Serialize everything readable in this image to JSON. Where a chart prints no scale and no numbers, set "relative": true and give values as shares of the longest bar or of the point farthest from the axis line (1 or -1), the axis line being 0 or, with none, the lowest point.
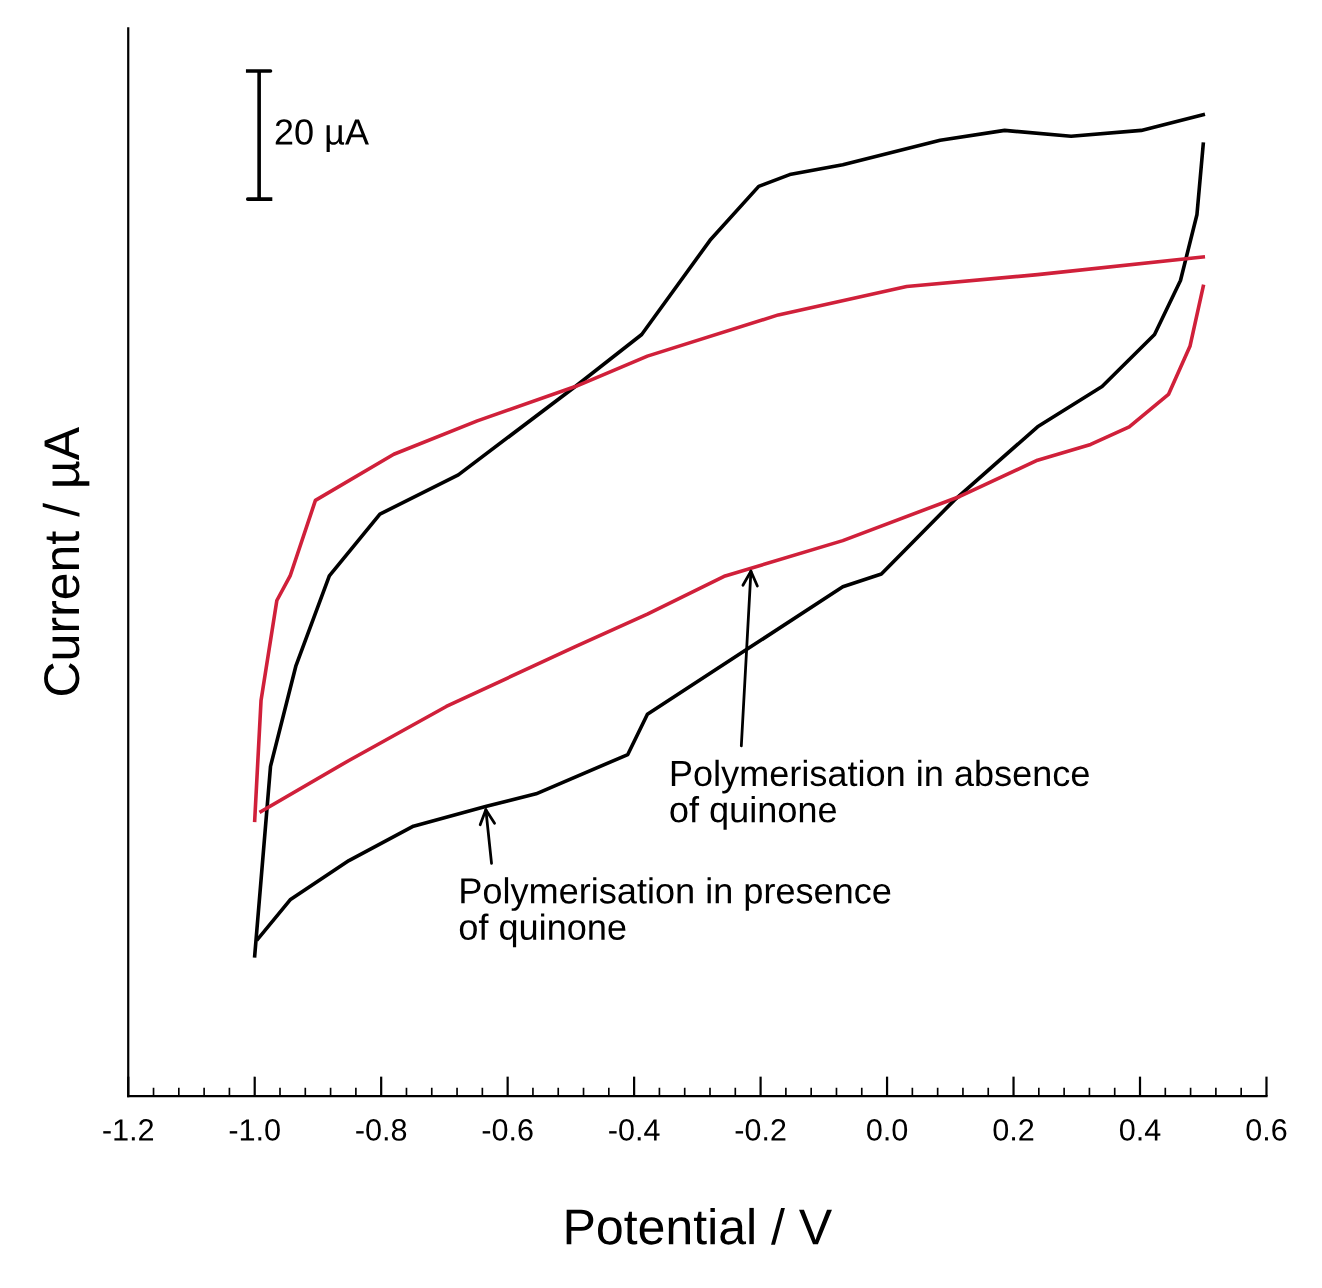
{
  "chart_data": {
    "type": "line",
    "relative": true,
    "xlabel": "Potential / V",
    "ylabel": "Current / µA",
    "xlim": [
      -1.2,
      0.6
    ],
    "xticks": [
      -1.2,
      {
        "value": -1.0,
        "label": "-1.0"
      },
      -0.8,
      -0.6,
      -0.4,
      -0.2,
      {
        "value": 0.0,
        "label": "0.0"
      },
      0.2,
      0.4,
      0.6
    ],
    "grid": false,
    "marker": "none",
    "line_style": "solid",
    "series": [
      {
        "color": "#000000",
        "x": [
          -1.0,
          -0.99,
          -0.975,
          -0.935,
          -0.882,
          -0.802,
          -0.678,
          -0.493,
          -0.388,
          -0.28,
          -0.203,
          -0.154,
          -0.07,
          0.084,
          0.186,
          0.291,
          0.402,
          0.5
        ],
        "values": [
          0.143,
          0.22,
          0.336,
          0.438,
          0.53,
          0.593,
          0.633,
          0.723,
          0.776,
          0.872,
          0.927,
          0.939,
          0.949,
          0.974,
          0.984,
          0.978,
          0.984,
          1.0
        ]
      },
      {
        "color": "#000000",
        "x": [
          -0.995,
          -0.944,
          -0.851,
          -0.749,
          -0.635,
          -0.555,
          -0.41,
          -0.379,
          -0.215,
          -0.07,
          -0.009,
          0.106,
          0.238,
          0.34,
          0.423,
          0.464,
          0.49,
          0.5
        ],
        "values": [
          0.16,
          0.2,
          0.24,
          0.275,
          0.295,
          0.308,
          0.348,
          0.389,
          0.458,
          0.519,
          0.532,
          0.607,
          0.682,
          0.723,
          0.776,
          0.831,
          0.898,
          0.97
        ]
      },
      {
        "color": "#d0203a",
        "x": [
          -1.0,
          -0.99,
          -0.965,
          -0.944,
          -0.904,
          -0.78,
          -0.648,
          -0.493,
          -0.379,
          -0.172,
          0.031,
          0.238,
          0.5
        ],
        "values": [
          0.281,
          0.403,
          0.505,
          0.53,
          0.607,
          0.654,
          0.688,
          0.723,
          0.754,
          0.796,
          0.825,
          0.837,
          0.855
        ]
      },
      {
        "color": "#d0203a",
        "x": [
          -0.99,
          -0.851,
          -0.697,
          -0.493,
          -0.379,
          -0.256,
          -0.07,
          0.115,
          0.238,
          0.322,
          0.383,
          0.445,
          0.479,
          0.5
        ],
        "values": [
          0.29,
          0.342,
          0.397,
          0.458,
          0.491,
          0.53,
          0.566,
          0.611,
          0.648,
          0.664,
          0.682,
          0.715,
          0.764,
          0.825
        ]
      }
    ],
    "annotations": [
      "20 µA",
      {
        "text": "Polymerisation in absence\nof quinone",
        "x": -0.215,
        "y": 0.538
      },
      {
        "text": "Polymerisation in presence\nof quinone",
        "x": -0.635,
        "y": 0.295
      }
    ]
  }
}
